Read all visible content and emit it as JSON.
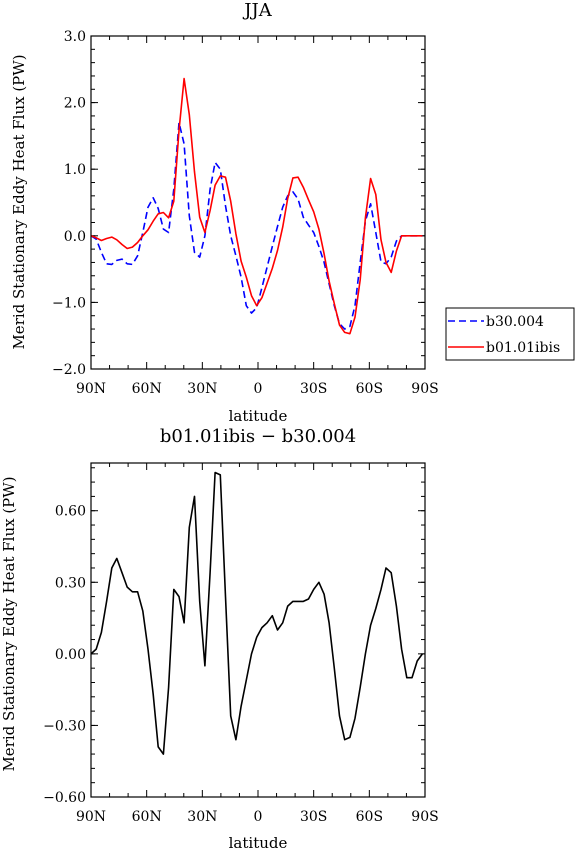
{
  "chart_data": [
    {
      "type": "line",
      "title": "JJA",
      "xlabel": "latitude",
      "ylabel": "Merid Stationary Eddy Heat Flux (PW)",
      "xlim": [
        90,
        -90
      ],
      "ylim": [
        -2.0,
        3.0
      ],
      "x_ticks": [
        {
          "value": 90,
          "label": "90N"
        },
        {
          "value": 60,
          "label": "60N"
        },
        {
          "value": 30,
          "label": "30N"
        },
        {
          "value": 0,
          "label": "0"
        },
        {
          "value": -30,
          "label": "30S"
        },
        {
          "value": -60,
          "label": "60S"
        },
        {
          "value": -90,
          "label": "90S"
        }
      ],
      "y_ticks": [
        {
          "value": 3.0,
          "label": "3.0"
        },
        {
          "value": 2.0,
          "label": "2.0"
        },
        {
          "value": 1.0,
          "label": "1.0"
        },
        {
          "value": 0.0,
          "label": "0.0"
        },
        {
          "value": -1.0,
          "label": "−1.0"
        },
        {
          "value": -2.0,
          "label": "−2.0"
        }
      ],
      "legend_position": "outside-right",
      "series": [
        {
          "name": "b30.004",
          "color": "#0000ff",
          "dash": "dashed",
          "x": [
            90,
            87.2,
            84.4,
            81.6,
            78.8,
            76.1,
            73.3,
            70.5,
            67.7,
            64.9,
            62.1,
            59.3,
            56.5,
            53.8,
            51,
            48.2,
            45.4,
            42.6,
            39.8,
            37,
            34.2,
            31.4,
            28.6,
            25.8,
            23.1,
            20.3,
            17.5,
            14.7,
            11.9,
            9.1,
            6.3,
            3.5,
            0.7,
            -2.1,
            -4.9,
            -7.7,
            -10.5,
            -13.3,
            -16,
            -18.8,
            -21.6,
            -24.4,
            -27.2,
            -30,
            -32.8,
            -35.6,
            -38.3,
            -41.1,
            -43.9,
            -46.7,
            -49.5,
            -52.3,
            -55.1,
            -57.9,
            -60.7,
            -63.5,
            -66.3,
            -69,
            -71.8,
            -74.6,
            -77.4,
            -80.2,
            -83,
            -85.8,
            -88.6
          ],
          "y": [
            0.0,
            -0.05,
            -0.25,
            -0.42,
            -0.43,
            -0.37,
            -0.35,
            -0.42,
            -0.43,
            -0.3,
            0.05,
            0.43,
            0.57,
            0.41,
            0.1,
            0.05,
            0.7,
            1.7,
            1.38,
            0.3,
            -0.25,
            -0.32,
            0.0,
            0.7,
            1.1,
            1.0,
            0.45,
            0.0,
            -0.3,
            -0.62,
            -1.05,
            -1.16,
            -1.08,
            -0.78,
            -0.47,
            -0.16,
            0.14,
            0.43,
            0.6,
            0.66,
            0.55,
            0.28,
            0.16,
            0.05,
            -0.16,
            -0.4,
            -0.72,
            -1.05,
            -1.32,
            -1.4,
            -1.36,
            -1.05,
            -0.4,
            0.22,
            0.48,
            0.05,
            -0.39,
            -0.42,
            -0.32,
            -0.08,
            0.0,
            0.0,
            0.0,
            0.0,
            0.0
          ]
        },
        {
          "name": "b01.01ibis",
          "color": "#ff0000",
          "dash": "solid",
          "x": [
            90,
            87.2,
            84.4,
            81.6,
            78.8,
            76.1,
            73.3,
            70.5,
            67.7,
            64.9,
            62.1,
            59.3,
            56.5,
            53.8,
            51,
            48.2,
            45.4,
            42.6,
            39.8,
            37,
            34.2,
            31.4,
            28.6,
            25.8,
            23.1,
            20.3,
            17.5,
            14.7,
            11.9,
            9.1,
            6.3,
            3.5,
            0.7,
            -2.1,
            -4.9,
            -7.7,
            -10.5,
            -13.3,
            -16,
            -18.8,
            -21.6,
            -24.4,
            -27.2,
            -30,
            -32.8,
            -35.6,
            -38.3,
            -41.1,
            -43.9,
            -46.7,
            -49.5,
            -52.3,
            -55.1,
            -57.9,
            -60.7,
            -63.5,
            -66.3,
            -69,
            -71.8,
            -74.6,
            -77.4,
            -80.2,
            -83,
            -85.8,
            -88.6
          ],
          "y": [
            0.0,
            -0.03,
            -0.07,
            -0.04,
            -0.02,
            -0.06,
            -0.13,
            -0.19,
            -0.17,
            -0.1,
            0.0,
            0.09,
            0.22,
            0.33,
            0.35,
            0.27,
            0.52,
            1.58,
            2.36,
            1.82,
            0.96,
            0.28,
            0.05,
            0.38,
            0.76,
            0.9,
            0.88,
            0.52,
            0.03,
            -0.38,
            -0.62,
            -0.9,
            -1.05,
            -0.93,
            -0.71,
            -0.49,
            -0.22,
            0.13,
            0.56,
            0.87,
            0.88,
            0.73,
            0.54,
            0.36,
            0.1,
            -0.27,
            -0.68,
            -1.02,
            -1.34,
            -1.45,
            -1.47,
            -1.22,
            -0.66,
            0.27,
            0.86,
            0.62,
            -0.06,
            -0.4,
            -0.55,
            -0.23,
            0.0,
            0.0,
            0.0,
            0.0,
            0.0
          ]
        }
      ]
    },
    {
      "type": "line",
      "title": "b01.01ibis − b30.004",
      "xlabel": "latitude",
      "ylabel": "Merid Stationary Eddy Heat Flux (PW)",
      "xlim": [
        90,
        -90
      ],
      "ylim": [
        -0.6,
        0.8
      ],
      "x_ticks": [
        {
          "value": 90,
          "label": "90N"
        },
        {
          "value": 60,
          "label": "60N"
        },
        {
          "value": 30,
          "label": "30N"
        },
        {
          "value": 0,
          "label": "0"
        },
        {
          "value": -30,
          "label": "30S"
        },
        {
          "value": -60,
          "label": "60S"
        },
        {
          "value": -90,
          "label": "90S"
        }
      ],
      "y_ticks": [
        {
          "value": 0.6,
          "label": "0.60"
        },
        {
          "value": 0.3,
          "label": "0.30"
        },
        {
          "value": 0.0,
          "label": "0.00"
        },
        {
          "value": -0.3,
          "label": "−0.30"
        },
        {
          "value": -0.6,
          "label": "−0.60"
        }
      ],
      "series": [
        {
          "color": "#000000",
          "dash": "solid",
          "x": [
            90,
            87.2,
            84.4,
            81.6,
            78.8,
            76.1,
            73.3,
            70.5,
            67.7,
            64.9,
            62.1,
            59.3,
            56.5,
            53.8,
            51,
            48.2,
            45.4,
            42.6,
            39.8,
            37,
            34.2,
            31.4,
            28.6,
            25.8,
            23.1,
            20.3,
            17.5,
            14.7,
            11.9,
            9.1,
            6.3,
            3.5,
            0.7,
            -2.1,
            -4.9,
            -7.7,
            -10.5,
            -13.3,
            -16,
            -18.8,
            -21.6,
            -24.4,
            -27.2,
            -30,
            -32.8,
            -35.6,
            -38.3,
            -41.1,
            -43.9,
            -46.7,
            -49.5,
            -52.3,
            -55.1,
            -57.9,
            -60.7,
            -63.5,
            -66.3,
            -69,
            -71.8,
            -74.6,
            -77.4,
            -80.2,
            -83,
            -85.8,
            -88.6
          ],
          "y": [
            0.0,
            0.02,
            0.09,
            0.22,
            0.36,
            0.4,
            0.34,
            0.28,
            0.26,
            0.26,
            0.18,
            0.02,
            -0.17,
            -0.39,
            -0.42,
            -0.14,
            0.27,
            0.24,
            0.13,
            0.53,
            0.66,
            0.22,
            -0.05,
            0.34,
            0.76,
            0.75,
            0.24,
            -0.26,
            -0.36,
            -0.22,
            -0.11,
            0.0,
            0.07,
            0.11,
            0.13,
            0.16,
            0.1,
            0.13,
            0.2,
            0.22,
            0.22,
            0.22,
            0.23,
            0.27,
            0.3,
            0.25,
            0.13,
            -0.06,
            -0.26,
            -0.36,
            -0.35,
            -0.27,
            -0.14,
            0.0,
            0.12,
            0.19,
            0.27,
            0.36,
            0.34,
            0.2,
            0.02,
            -0.1,
            -0.1,
            -0.03,
            0.0
          ]
        }
      ]
    }
  ]
}
